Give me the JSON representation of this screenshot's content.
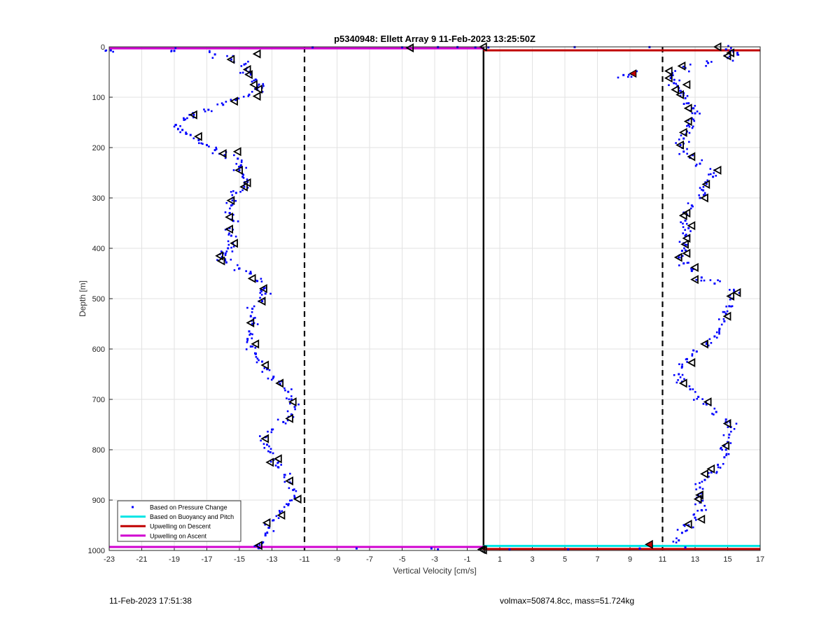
{
  "footer": {
    "timestamp": "11-Feb-2023 17:51:38",
    "info": "volmax=50874.8cc, mass=51.724kg"
  },
  "colors": {
    "pressure": "#0000ff",
    "buoyancy": "#00e5e5",
    "descent_line": "#c00000",
    "ascent_line": "#d000d0",
    "grid": "#e2e2e2"
  },
  "chart_data": {
    "type": "scatter",
    "title": "p5340948: Ellett Array 9 11-Feb-2023 13:25:50Z",
    "xlabel": "Vertical Velocity [cm/s]",
    "ylabel": "Depth [m]",
    "xlim": [
      -23,
      17
    ],
    "ylim": [
      0,
      1000
    ],
    "y_reversed": true,
    "xticks": [
      -23,
      -21,
      -19,
      -17,
      -15,
      -13,
      -11,
      -9,
      -7,
      -5,
      -3,
      -1,
      1,
      3,
      5,
      7,
      9,
      11,
      13,
      15,
      17
    ],
    "yticks": [
      0,
      100,
      200,
      300,
      400,
      500,
      600,
      700,
      800,
      900,
      1000
    ],
    "grid": true,
    "legend_location": "bottom-left",
    "legend": [
      {
        "label": "Based on Pressure Change",
        "style": "dot",
        "color": "#0000ff"
      },
      {
        "label": "Based on Buoyancy and Pitch",
        "style": "line",
        "color": "#00e5e5"
      },
      {
        "label": "Upwelling on Descent",
        "style": "line",
        "color": "#c00000"
      },
      {
        "label": "Upwelling on Ascent",
        "style": "line",
        "color": "#d000d0"
      }
    ],
    "reference_lines": {
      "dashed_x": [
        -11,
        11
      ],
      "solid_x": [
        0
      ]
    },
    "horizontal_lines": [
      {
        "name": "Upwelling on Ascent",
        "y": 3,
        "x": [
          -23,
          0
        ],
        "color": "#d000d0"
      },
      {
        "name": "Upwelling on Descent",
        "y": 7,
        "x": [
          0,
          17
        ],
        "color": "#c00000"
      },
      {
        "name": "Upwelling on Ascent",
        "y": 993,
        "x": [
          -23,
          0
        ],
        "color": "#d000d0"
      },
      {
        "name": "Based on Buoyancy and Pitch",
        "y": 991,
        "x": [
          0,
          17
        ],
        "color": "#00e5e5"
      },
      {
        "name": "Upwelling on Descent",
        "y": 997,
        "x": [
          0,
          17
        ],
        "color": "#c00000"
      }
    ],
    "series": [
      {
        "name": "Based on Pressure Change",
        "profile": "ascent",
        "points": [
          [
            -13.8,
            995
          ],
          [
            -13.6,
            985
          ],
          [
            -13.4,
            970
          ],
          [
            -13.2,
            955
          ],
          [
            -12.9,
            940
          ],
          [
            -12.5,
            925
          ],
          [
            -12.0,
            910
          ],
          [
            -11.6,
            895
          ],
          [
            -11.7,
            880
          ],
          [
            -11.9,
            865
          ],
          [
            -12.2,
            850
          ],
          [
            -12.6,
            835
          ],
          [
            -12.9,
            820
          ],
          [
            -13.1,
            805
          ],
          [
            -13.3,
            790
          ],
          [
            -13.4,
            775
          ],
          [
            -13.0,
            760
          ],
          [
            -12.3,
            745
          ],
          [
            -11.8,
            730
          ],
          [
            -11.6,
            715
          ],
          [
            -11.8,
            700
          ],
          [
            -12.0,
            685
          ],
          [
            -12.5,
            670
          ],
          [
            -12.9,
            655
          ],
          [
            -13.3,
            640
          ],
          [
            -13.6,
            625
          ],
          [
            -14.0,
            610
          ],
          [
            -14.3,
            595
          ],
          [
            -14.5,
            580
          ],
          [
            -14.4,
            565
          ],
          [
            -14.2,
            550
          ],
          [
            -14.3,
            535
          ],
          [
            -14.2,
            520
          ],
          [
            -13.6,
            505
          ],
          [
            -13.4,
            490
          ],
          [
            -13.5,
            480
          ],
          [
            -13.9,
            465
          ],
          [
            -14.3,
            450
          ],
          [
            -15.0,
            440
          ],
          [
            -15.8,
            428
          ],
          [
            -16.1,
            420
          ],
          [
            -16.0,
            410
          ],
          [
            -15.7,
            400
          ],
          [
            -15.4,
            390
          ],
          [
            -15.5,
            375
          ],
          [
            -15.6,
            360
          ],
          [
            -15.4,
            345
          ],
          [
            -15.6,
            330
          ],
          [
            -15.5,
            315
          ],
          [
            -15.4,
            300
          ],
          [
            -15.2,
            290
          ],
          [
            -14.7,
            278
          ],
          [
            -14.5,
            268
          ],
          [
            -14.8,
            258
          ],
          [
            -15.0,
            245
          ],
          [
            -14.9,
            235
          ],
          [
            -15.1,
            222
          ],
          [
            -15.9,
            215
          ],
          [
            -16.5,
            205
          ],
          [
            -17.0,
            195
          ],
          [
            -17.5,
            185
          ],
          [
            -18.0,
            175
          ],
          [
            -18.5,
            165
          ],
          [
            -18.9,
            155
          ],
          [
            -18.4,
            145
          ],
          [
            -17.8,
            135
          ],
          [
            -16.9,
            125
          ],
          [
            -16.0,
            115
          ],
          [
            -15.2,
            105
          ],
          [
            -14.4,
            95
          ],
          [
            -13.9,
            85
          ],
          [
            -13.8,
            75
          ],
          [
            -14.0,
            65
          ],
          [
            -14.3,
            55
          ],
          [
            -14.6,
            45
          ],
          [
            -14.7,
            35
          ],
          [
            -15.5,
            25
          ],
          [
            -16.5,
            15
          ],
          [
            -19.0,
            8
          ],
          [
            -22.9,
            7
          ]
        ]
      },
      {
        "name": "Based on Pressure Change",
        "profile": "descent",
        "points": [
          [
            14.9,
            5
          ],
          [
            15.6,
            12
          ],
          [
            15.0,
            22
          ],
          [
            13.8,
            32
          ],
          [
            12.4,
            42
          ],
          [
            11.6,
            52
          ],
          [
            11.5,
            62
          ],
          [
            11.7,
            72
          ],
          [
            12.0,
            82
          ],
          [
            12.3,
            92
          ],
          [
            12.4,
            102
          ],
          [
            12.6,
            112
          ],
          [
            12.9,
            122
          ],
          [
            13.0,
            132
          ],
          [
            12.8,
            142
          ],
          [
            12.6,
            155
          ],
          [
            12.5,
            168
          ],
          [
            12.3,
            182
          ],
          [
            12.1,
            195
          ],
          [
            12.3,
            208
          ],
          [
            12.7,
            220
          ],
          [
            13.3,
            232
          ],
          [
            14.2,
            245
          ],
          [
            14.1,
            258
          ],
          [
            13.7,
            272
          ],
          [
            13.5,
            285
          ],
          [
            13.3,
            300
          ],
          [
            12.8,
            315
          ],
          [
            12.3,
            330
          ],
          [
            12.4,
            345
          ],
          [
            12.6,
            360
          ],
          [
            12.4,
            375
          ],
          [
            12.3,
            390
          ],
          [
            12.2,
            405
          ],
          [
            12.0,
            418
          ],
          [
            12.3,
            430
          ],
          [
            12.8,
            445
          ],
          [
            13.4,
            458
          ],
          [
            14.2,
            470
          ],
          [
            15.4,
            485
          ],
          [
            15.3,
            500
          ],
          [
            15.1,
            515
          ],
          [
            14.9,
            530
          ],
          [
            14.8,
            545
          ],
          [
            14.5,
            560
          ],
          [
            14.2,
            575
          ],
          [
            13.7,
            590
          ],
          [
            13.1,
            605
          ],
          [
            12.5,
            620
          ],
          [
            12.2,
            635
          ],
          [
            12.0,
            650
          ],
          [
            12.2,
            665
          ],
          [
            12.7,
            680
          ],
          [
            13.2,
            695
          ],
          [
            13.7,
            710
          ],
          [
            14.3,
            725
          ],
          [
            14.9,
            740
          ],
          [
            15.2,
            755
          ],
          [
            15.1,
            770
          ],
          [
            15.0,
            785
          ],
          [
            14.9,
            800
          ],
          [
            14.8,
            815
          ],
          [
            14.4,
            830
          ],
          [
            14.0,
            845
          ],
          [
            13.6,
            860
          ],
          [
            13.3,
            875
          ],
          [
            13.2,
            890
          ],
          [
            13.3,
            905
          ],
          [
            13.4,
            920
          ],
          [
            13.0,
            935
          ],
          [
            12.6,
            950
          ],
          [
            12.2,
            965
          ],
          [
            12.0,
            980
          ],
          [
            9.1,
            54
          ],
          [
            8.6,
            56
          ]
        ]
      },
      {
        "name": "Based on Pressure Change",
        "profile": "surface-and-bottom",
        "points": [
          [
            -10.5,
            1
          ],
          [
            -5.0,
            1
          ],
          [
            -2.8,
            0.5
          ],
          [
            -1.6,
            0.5
          ],
          [
            -0.5,
            1
          ],
          [
            0.3,
            1
          ],
          [
            5.6,
            0.5
          ],
          [
            10.2,
            0.5
          ],
          [
            -7.8,
            996
          ],
          [
            -3.2,
            996
          ],
          [
            -2.8,
            998
          ],
          [
            1.6,
            998
          ],
          [
            5.2,
            998
          ],
          [
            9.6,
            996
          ],
          [
            12.4,
            994
          ]
        ]
      },
      {
        "name": "Based on Buoyancy and Pitch",
        "profile": "ascent",
        "marker": "triangle",
        "points": [
          [
            -13.8,
            990
          ],
          [
            -13.3,
            945
          ],
          [
            -12.4,
            930
          ],
          [
            -11.4,
            898
          ],
          [
            -11.9,
            862
          ],
          [
            -12.6,
            818
          ],
          [
            -13.1,
            825
          ],
          [
            -13.4,
            778
          ],
          [
            -11.9,
            738
          ],
          [
            -11.7,
            705
          ],
          [
            -12.5,
            668
          ],
          [
            -13.4,
            632
          ],
          [
            -14.0,
            590
          ],
          [
            -14.3,
            548
          ],
          [
            -13.6,
            505
          ],
          [
            -13.5,
            480
          ],
          [
            -14.2,
            460
          ],
          [
            -16.1,
            425
          ],
          [
            -16.2,
            415
          ],
          [
            -15.3,
            390
          ],
          [
            -15.6,
            362
          ],
          [
            -15.6,
            338
          ],
          [
            -15.5,
            305
          ],
          [
            -14.7,
            278
          ],
          [
            -14.5,
            270
          ],
          [
            -15.0,
            245
          ],
          [
            -15.1,
            208
          ],
          [
            -16.0,
            212
          ],
          [
            -17.5,
            178
          ],
          [
            -17.8,
            135
          ],
          [
            -15.3,
            108
          ],
          [
            -13.9,
            98
          ],
          [
            -13.8,
            84
          ],
          [
            -14.1,
            75
          ],
          [
            -14.4,
            55
          ],
          [
            -14.5,
            45
          ],
          [
            -15.5,
            25
          ],
          [
            -13.9,
            14
          ],
          [
            -4.5,
            2
          ],
          [
            0.0,
            0
          ]
        ]
      },
      {
        "name": "Based on Buoyancy and Pitch",
        "profile": "descent",
        "marker": "triangle",
        "points": [
          [
            14.4,
            0
          ],
          [
            15.2,
            12
          ],
          [
            15.0,
            18
          ],
          [
            12.2,
            38
          ],
          [
            11.4,
            48
          ],
          [
            11.4,
            62
          ],
          [
            12.5,
            75
          ],
          [
            11.8,
            85
          ],
          [
            12.1,
            95
          ],
          [
            12.6,
            122
          ],
          [
            12.6,
            148
          ],
          [
            12.3,
            170
          ],
          [
            12.1,
            195
          ],
          [
            12.8,
            218
          ],
          [
            14.4,
            245
          ],
          [
            13.7,
            273
          ],
          [
            13.6,
            300
          ],
          [
            12.5,
            330
          ],
          [
            12.3,
            335
          ],
          [
            12.8,
            355
          ],
          [
            12.5,
            380
          ],
          [
            12.4,
            392
          ],
          [
            12.5,
            410
          ],
          [
            12.0,
            418
          ],
          [
            13.0,
            438
          ],
          [
            13.0,
            462
          ],
          [
            15.6,
            488
          ],
          [
            15.2,
            495
          ],
          [
            15.0,
            535
          ],
          [
            13.6,
            590
          ],
          [
            12.8,
            627
          ],
          [
            12.3,
            668
          ],
          [
            13.8,
            705
          ],
          [
            15.0,
            748
          ],
          [
            14.9,
            792
          ],
          [
            14.0,
            838
          ],
          [
            13.6,
            848
          ],
          [
            13.3,
            890
          ],
          [
            13.2,
            898
          ],
          [
            13.4,
            938
          ],
          [
            12.6,
            948
          ],
          [
            10.2,
            988
          ],
          [
            0.0,
            999
          ],
          [
            -0.1,
            998
          ]
        ]
      }
    ],
    "annotations": [
      {
        "label": "Upwelling on Descent marker",
        "x": 9.2,
        "y": 53,
        "color": "#c00000"
      },
      {
        "label": "Upwelling on Descent marker",
        "x": 10.2,
        "y": 988,
        "color": "#c00000"
      }
    ]
  }
}
